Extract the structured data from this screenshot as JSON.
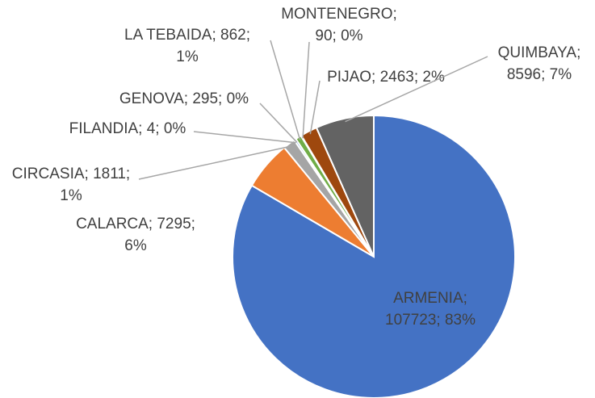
{
  "chart_data": {
    "type": "pie",
    "categories": [
      "ARMENIA",
      "CALARCA",
      "CIRCASIA",
      "FILANDIA",
      "GENOVA",
      "LA TEBAIDA",
      "MONTENEGRO",
      "PIJAO",
      "QUIMBAYA"
    ],
    "values": [
      107723,
      7295,
      1811,
      4,
      295,
      862,
      90,
      2463,
      8596
    ],
    "value_labels": [
      [
        "ARMENIA;",
        "107723; 83%"
      ],
      [
        "CALARCA; 7295;",
        "6%"
      ],
      [
        "CIRCASIA; 1811;",
        "1%"
      ],
      [
        "FILANDIA; 4; 0%"
      ],
      [
        "GENOVA; 295; 0%"
      ],
      [
        "LA TEBAIDA; 862;",
        "1%"
      ],
      [
        "MONTENEGRO;",
        "90; 0%"
      ],
      [
        "PIJAO; 2463; 2%"
      ],
      [
        "QUIMBAYA;",
        "8596; 7%"
      ]
    ],
    "colors": [
      "#4472c4",
      "#ed7d31",
      "#a5a5a5",
      "#ffc000",
      "#5b9bd5",
      "#70ad47",
      "#264478",
      "#9e480e",
      "#636363"
    ]
  }
}
